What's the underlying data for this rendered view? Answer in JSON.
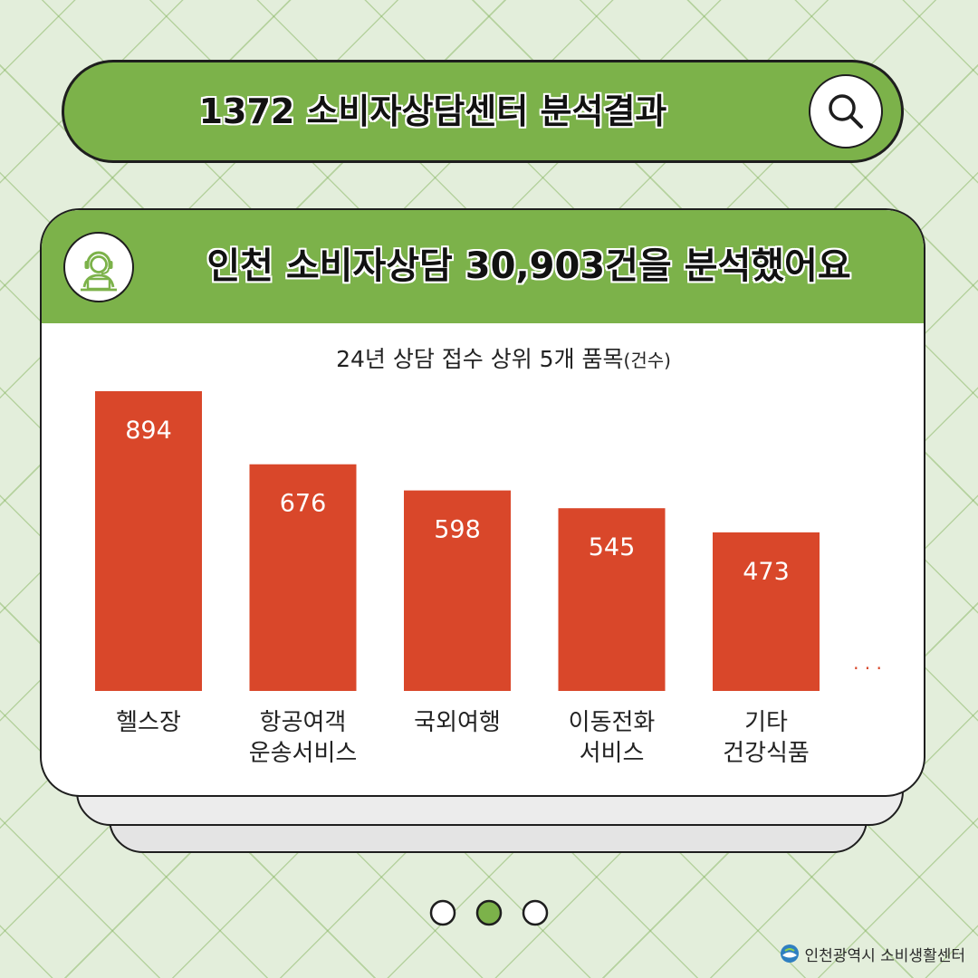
{
  "search": {
    "title": "1372 소비자상담센터 분석결과",
    "icon": "search-icon"
  },
  "card": {
    "title": "인천 소비자상담 30,903건을 분석했어요",
    "avatar_icon": "headset-agent-icon"
  },
  "chart_data": {
    "type": "bar",
    "title": "24년 상담 접수 상위 5개 품목",
    "unit": "(건수)",
    "categories": [
      [
        "헬스장"
      ],
      [
        "항공여객",
        "운송서비스"
      ],
      [
        "국외여행"
      ],
      [
        "이동전화",
        "서비스"
      ],
      [
        "기타",
        "건강식품"
      ]
    ],
    "values": [
      894,
      676,
      598,
      545,
      473
    ],
    "trailing_note": "· · ·",
    "bar_color": "#d9472a",
    "ylim": [
      0,
      894
    ]
  },
  "pagination": {
    "count": 3,
    "active": 1,
    "active_color": "#7cb24a"
  },
  "footer": {
    "org": "인천광역시 소비생활센터"
  },
  "colors": {
    "green": "#7cb24a",
    "bar": "#d9472a",
    "outline": "#1e1e1e"
  }
}
